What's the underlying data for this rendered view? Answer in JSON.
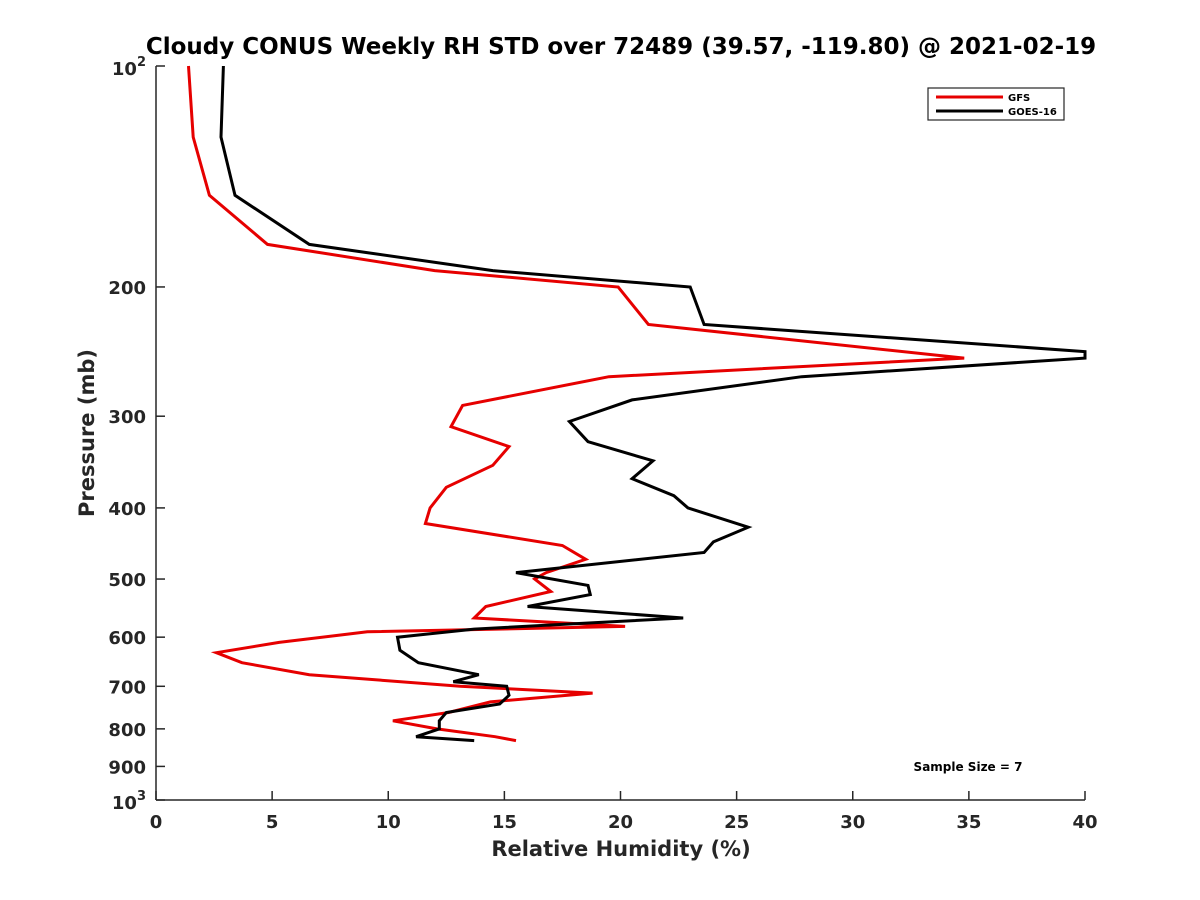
{
  "chart_data": {
    "type": "line",
    "title": "Cloudy CONUS Weekly RH STD over 72489 (39.57, -119.80) @ 2021-02-19",
    "xlabel": "Relative Humidity (%)",
    "ylabel": "Pressure (mb)",
    "xlim": [
      0,
      40
    ],
    "ylim": [
      100,
      1000
    ],
    "y_scale": "log",
    "y_reversed": true,
    "x_ticks": [
      "0",
      "5",
      "10",
      "15",
      "20",
      "25",
      "30",
      "35",
      "40"
    ],
    "y_ticks": [
      {
        "value": 100,
        "base": "10",
        "exp": "2",
        "label": ""
      },
      {
        "value": 200,
        "base": "",
        "exp": "",
        "label": "200"
      },
      {
        "value": 300,
        "base": "",
        "exp": "",
        "label": "300"
      },
      {
        "value": 400,
        "base": "",
        "exp": "",
        "label": "400"
      },
      {
        "value": 500,
        "base": "",
        "exp": "",
        "label": "500"
      },
      {
        "value": 600,
        "base": "",
        "exp": "",
        "label": "600"
      },
      {
        "value": 700,
        "base": "",
        "exp": "",
        "label": "700"
      },
      {
        "value": 800,
        "base": "",
        "exp": "",
        "label": "800"
      },
      {
        "value": 900,
        "base": "",
        "exp": "",
        "label": "900"
      },
      {
        "value": 1000,
        "base": "10",
        "exp": "3",
        "label": ""
      }
    ],
    "grid": false,
    "legend_position": "top-right",
    "annotation": "Sample Size = 7",
    "annotation_position": "bottom-right",
    "series": [
      {
        "name": "GFS",
        "color": "#e60000",
        "points": [
          [
            1.4,
            100
          ],
          [
            1.6,
            125
          ],
          [
            2.3,
            150
          ],
          [
            4.8,
            175
          ],
          [
            12.0,
            190
          ],
          [
            19.9,
            200
          ],
          [
            21.2,
            225
          ],
          [
            34.8,
            250
          ],
          [
            19.5,
            265
          ],
          [
            13.2,
            290
          ],
          [
            12.7,
            310
          ],
          [
            15.2,
            330
          ],
          [
            14.5,
            350
          ],
          [
            12.5,
            375
          ],
          [
            11.8,
            400
          ],
          [
            11.6,
            420
          ],
          [
            17.5,
            450
          ],
          [
            18.5,
            470
          ],
          [
            16.8,
            490
          ],
          [
            16.3,
            500
          ],
          [
            17.0,
            520
          ],
          [
            14.2,
            545
          ],
          [
            13.7,
            565
          ],
          [
            20.2,
            580
          ],
          [
            9.1,
            590
          ],
          [
            5.3,
            610
          ],
          [
            2.6,
            630
          ],
          [
            3.7,
            650
          ],
          [
            6.6,
            675
          ],
          [
            13.1,
            700
          ],
          [
            18.8,
            715
          ],
          [
            14.4,
            735
          ],
          [
            12.6,
            760
          ],
          [
            10.2,
            780
          ],
          [
            12.1,
            800
          ],
          [
            14.6,
            820
          ],
          [
            15.5,
            830
          ]
        ]
      },
      {
        "name": "GOES-16",
        "color": "#000000",
        "points": [
          [
            2.9,
            100
          ],
          [
            2.8,
            125
          ],
          [
            3.4,
            150
          ],
          [
            6.6,
            175
          ],
          [
            14.5,
            190
          ],
          [
            23.0,
            200
          ],
          [
            23.6,
            225
          ],
          [
            40.0,
            245
          ],
          [
            40.0,
            250
          ],
          [
            27.8,
            265
          ],
          [
            20.5,
            285
          ],
          [
            17.8,
            305
          ],
          [
            18.6,
            325
          ],
          [
            21.4,
            345
          ],
          [
            20.5,
            365
          ],
          [
            22.3,
            385
          ],
          [
            22.9,
            400
          ],
          [
            25.5,
            425
          ],
          [
            24.0,
            445
          ],
          [
            23.6,
            460
          ],
          [
            15.5,
            490
          ],
          [
            18.6,
            510
          ],
          [
            18.7,
            525
          ],
          [
            16.0,
            545
          ],
          [
            22.7,
            565
          ],
          [
            13.7,
            585
          ],
          [
            10.4,
            600
          ],
          [
            10.5,
            625
          ],
          [
            11.3,
            650
          ],
          [
            13.9,
            675
          ],
          [
            12.8,
            690
          ],
          [
            15.1,
            700
          ],
          [
            15.2,
            720
          ],
          [
            14.8,
            740
          ],
          [
            12.5,
            760
          ],
          [
            12.2,
            780
          ],
          [
            12.2,
            800
          ],
          [
            11.2,
            820
          ],
          [
            13.7,
            830
          ]
        ]
      }
    ]
  }
}
